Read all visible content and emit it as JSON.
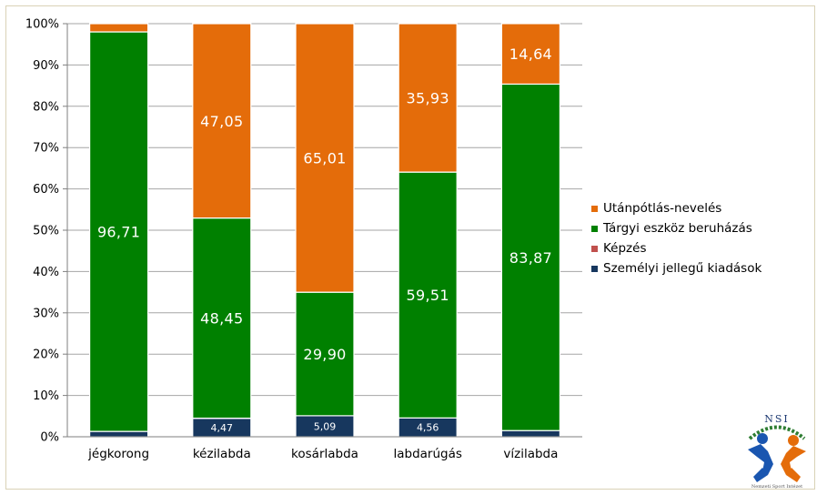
{
  "chart_data": {
    "type": "bar",
    "stacked": "percent",
    "categories": [
      "jégkorong",
      "kézilabda",
      "kosárlabda",
      "labdarúgás",
      "vízilabda"
    ],
    "series": [
      {
        "name": "Személyi jellegű kiadások",
        "color": "#17375e",
        "values": [
          1.3,
          4.47,
          5.09,
          4.56,
          1.5
        ],
        "labels": [
          "",
          "4,47",
          "5,09",
          "4,56",
          ""
        ]
      },
      {
        "name": "Képzés",
        "color": "#c0504d",
        "values": [
          0,
          0.03,
          0,
          0,
          0
        ],
        "labels": [
          "",
          "",
          "",
          "",
          ""
        ]
      },
      {
        "name": "Tárgyi eszköz beruházás",
        "color": "#008000",
        "values": [
          96.71,
          48.45,
          29.9,
          59.51,
          83.87
        ],
        "labels": [
          "96,71",
          "48,45",
          "29,90",
          "59,51",
          "83,87"
        ]
      },
      {
        "name": "Utánpótlás-nevelés",
        "color": "#e46c0a",
        "values": [
          1.99,
          47.05,
          65.01,
          35.93,
          14.64
        ],
        "labels": [
          "",
          "47,05",
          "65,01",
          "35,93",
          "14,64"
        ]
      }
    ],
    "ylim": [
      0,
      100
    ],
    "yticks": [
      "0%",
      "10%",
      "20%",
      "30%",
      "40%",
      "50%",
      "60%",
      "70%",
      "80%",
      "90%",
      "100%"
    ],
    "grid": true,
    "legend_order": [
      "Utánpótlás-nevelés",
      "Tárgyi eszköz beruházás",
      "Képzés",
      "Személyi jellegű kiadások"
    ],
    "legend_position": "right"
  },
  "logo": {
    "text": "NSI",
    "caption": "Nemzeti Sport Intézet",
    "icon": "nsi-logo-icon"
  }
}
